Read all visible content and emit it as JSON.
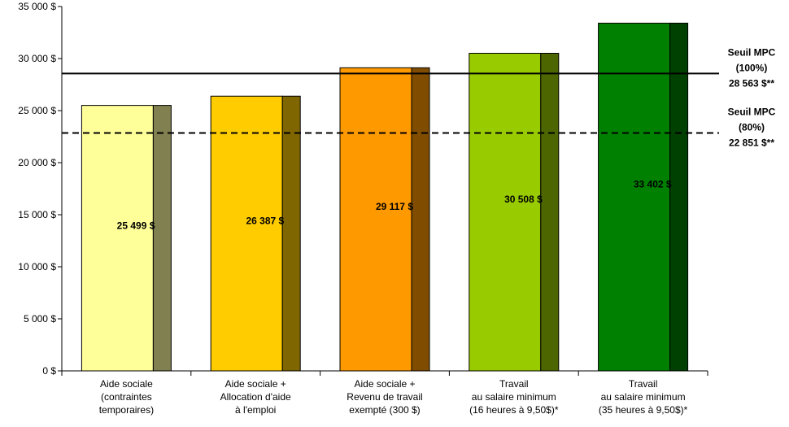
{
  "chart_data": {
    "type": "bar",
    "categories": [
      [
        "Aide sociale",
        "(contraintes",
        "temporaires)"
      ],
      [
        "Aide sociale +",
        "Allocation d'aide",
        "à l'emploi"
      ],
      [
        "Aide sociale +",
        "Revenu de travail",
        "exempté (300 $)"
      ],
      [
        "Travail",
        "au salaire minimum",
        "(16 heures à 9,50$)*"
      ],
      [
        "Travail",
        "au salaire minimum",
        "(35 heures à 9,50$)*"
      ]
    ],
    "values": [
      25499,
      26387,
      29117,
      30508,
      33402
    ],
    "value_labels": [
      "25 499 $",
      "26 387 $",
      "29 117 $",
      "30 508 $",
      "33 402 $"
    ],
    "colors": [
      {
        "front": "#FFFF99",
        "side": "#808050"
      },
      {
        "front": "#FFCC00",
        "side": "#806600"
      },
      {
        "front": "#FF9900",
        "side": "#804D00"
      },
      {
        "front": "#99CC00",
        "side": "#4D6600"
      },
      {
        "front": "#008000",
        "side": "#004000"
      }
    ],
    "ylim": [
      0,
      35000
    ],
    "yticks": [
      0,
      5000,
      10000,
      15000,
      20000,
      25000,
      30000,
      35000
    ],
    "ytick_labels": [
      "0 $",
      "5 000 $",
      "10 000 $",
      "15 000 $",
      "20 000 $",
      "25 000 $",
      "30 000 $",
      "35 000 $"
    ],
    "reference_lines": [
      {
        "value": 28563,
        "style": "solid",
        "label": [
          "Seuil MPC",
          "(100%)",
          "28 563 $**"
        ]
      },
      {
        "value": 22851,
        "style": "dashed",
        "label": [
          "Seuil MPC",
          "(80%)",
          "22 851 $**"
        ]
      }
    ],
    "grid": false,
    "xlabel": "",
    "ylabel": ""
  }
}
